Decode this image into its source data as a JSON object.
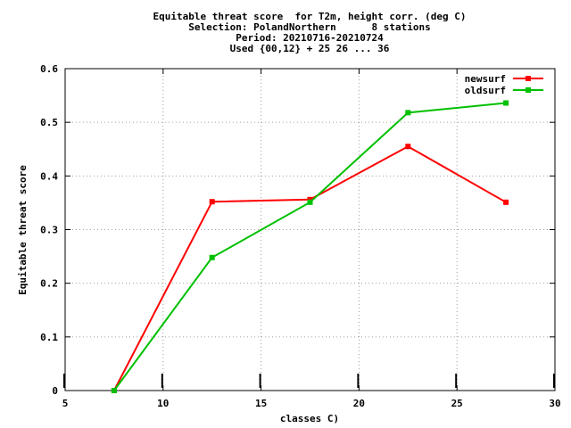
{
  "chart_data": {
    "type": "line",
    "title": [
      "Equitable threat score  for T2m, height corr. (deg C)",
      "Selection: PolandNorthern      8 stations",
      "Period: 20210716-20210724",
      "Used {00,12} + 25 26 ... 36"
    ],
    "xlabel": "classes C)",
    "ylabel": "Equitable threat score",
    "xlim": [
      5,
      30
    ],
    "ylim": [
      0,
      0.6
    ],
    "xticks": [
      5,
      10,
      15,
      20,
      25,
      30
    ],
    "yticks": [
      0,
      0.1,
      0.2,
      0.3,
      0.4,
      0.5,
      0.6
    ],
    "xtick_labels": [
      "5",
      "10",
      "15",
      "20",
      "25",
      "30"
    ],
    "ytick_labels": [
      "0",
      "0.1",
      "0.2",
      "0.3",
      "0.4",
      "0.5",
      "0.6"
    ],
    "grid": true,
    "legend_position": "top-right",
    "series": [
      {
        "name": "newsurf",
        "color": "#ff0000",
        "x": [
          7.5,
          12.5,
          17.5,
          22.5,
          27.5
        ],
        "y": [
          0.0,
          0.352,
          0.356,
          0.455,
          0.351
        ]
      },
      {
        "name": "oldsurf",
        "color": "#00c000",
        "x": [
          7.5,
          12.5,
          17.5,
          22.5,
          27.5
        ],
        "y": [
          0.0,
          0.248,
          0.351,
          0.518,
          0.536
        ]
      }
    ],
    "baseline_markers_x": [
      5,
      10,
      15,
      20,
      25,
      30
    ]
  }
}
